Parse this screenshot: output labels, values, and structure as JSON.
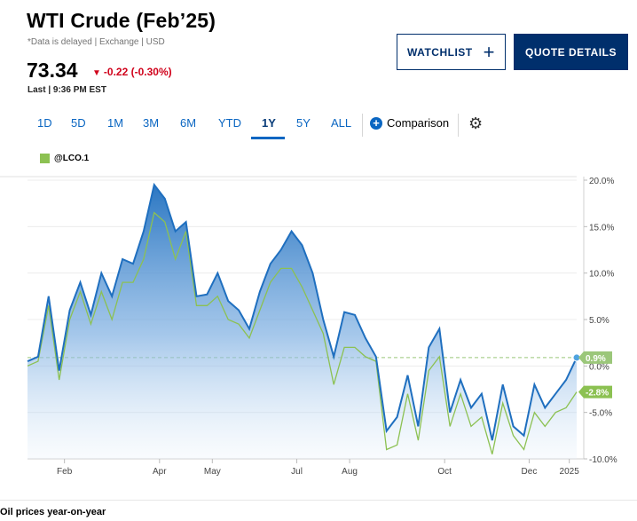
{
  "header": {
    "title": "WTI Crude (Feb’25)",
    "meta": "*Data is delayed | Exchange | USD",
    "price": "73.34",
    "change": "-0.22 (-0.30%)",
    "last": "Last | 9:36 PM EST"
  },
  "buttons": {
    "watchlist": "WATCHLIST",
    "quote_details": "QUOTE DETAILS"
  },
  "tabs": [
    "1D",
    "5D",
    "1M",
    "3M",
    "6M",
    "YTD",
    "1Y",
    "5Y",
    "ALL"
  ],
  "active_tab": "1Y",
  "comparison_label": "Comparison",
  "legend_label": "@LCO.1",
  "caption": "Oil prices year-on-year",
  "colors": {
    "wti": "#1f6fbf",
    "lco": "#8cc152",
    "down": "#d0021b",
    "brand": "#002f6c"
  },
  "chart_data": {
    "type": "area",
    "ylim": [
      -10,
      20
    ],
    "yticks": [
      "20.0%",
      "15.0%",
      "10.0%",
      "5.0%",
      "0.0%",
      "-5.0%",
      "-10.0%"
    ],
    "xticks": [
      "Feb",
      "Apr",
      "May",
      "Jul",
      "Aug",
      "Oct",
      "Dec",
      "2025"
    ],
    "end_labels": [
      "0.9%",
      "-2.8%"
    ],
    "series": [
      {
        "name": "WTI Crude (Feb’25)",
        "values": [
          0.5,
          1.0,
          7.5,
          -0.5,
          6.0,
          9.0,
          5.5,
          10.0,
          7.5,
          11.5,
          11.0,
          14.5,
          19.5,
          18.0,
          14.5,
          15.5,
          7.5,
          7.7,
          10.0,
          7.0,
          6.0,
          4.0,
          8.0,
          11.0,
          12.5,
          14.5,
          13.0,
          10.0,
          5.0,
          1.0,
          5.8,
          5.5,
          3.0,
          1.0,
          -7.0,
          -5.5,
          -1.0,
          -6.5,
          2.0,
          4.0,
          -5.0,
          -1.5,
          -4.5,
          -3.0,
          -8.0,
          -2.0,
          -6.5,
          -7.5,
          -2.0,
          -4.5,
          -3.0,
          -1.5,
          0.9
        ]
      },
      {
        "name": "@LCO.1",
        "values": [
          0.0,
          0.5,
          6.5,
          -1.5,
          5.0,
          8.0,
          4.5,
          8.0,
          5.0,
          9.0,
          9.0,
          11.5,
          16.5,
          15.5,
          11.5,
          14.5,
          6.5,
          6.5,
          7.5,
          5.0,
          4.5,
          3.0,
          6.0,
          9.0,
          10.5,
          10.5,
          8.5,
          6.0,
          3.5,
          -2.0,
          2.0,
          2.0,
          1.0,
          0.5,
          -9.0,
          -8.5,
          -3.0,
          -8.0,
          -0.5,
          1.0,
          -6.5,
          -3.0,
          -6.5,
          -5.5,
          -9.5,
          -4.0,
          -7.5,
          -9.0,
          -5.0,
          -6.5,
          -5.0,
          -4.5,
          -2.8
        ]
      }
    ],
    "xtick_index": [
      3.5,
      12.5,
      17.5,
      25.5,
      30.5,
      39.5,
      47.5,
      51.3
    ],
    "reference_line": 0.9
  }
}
